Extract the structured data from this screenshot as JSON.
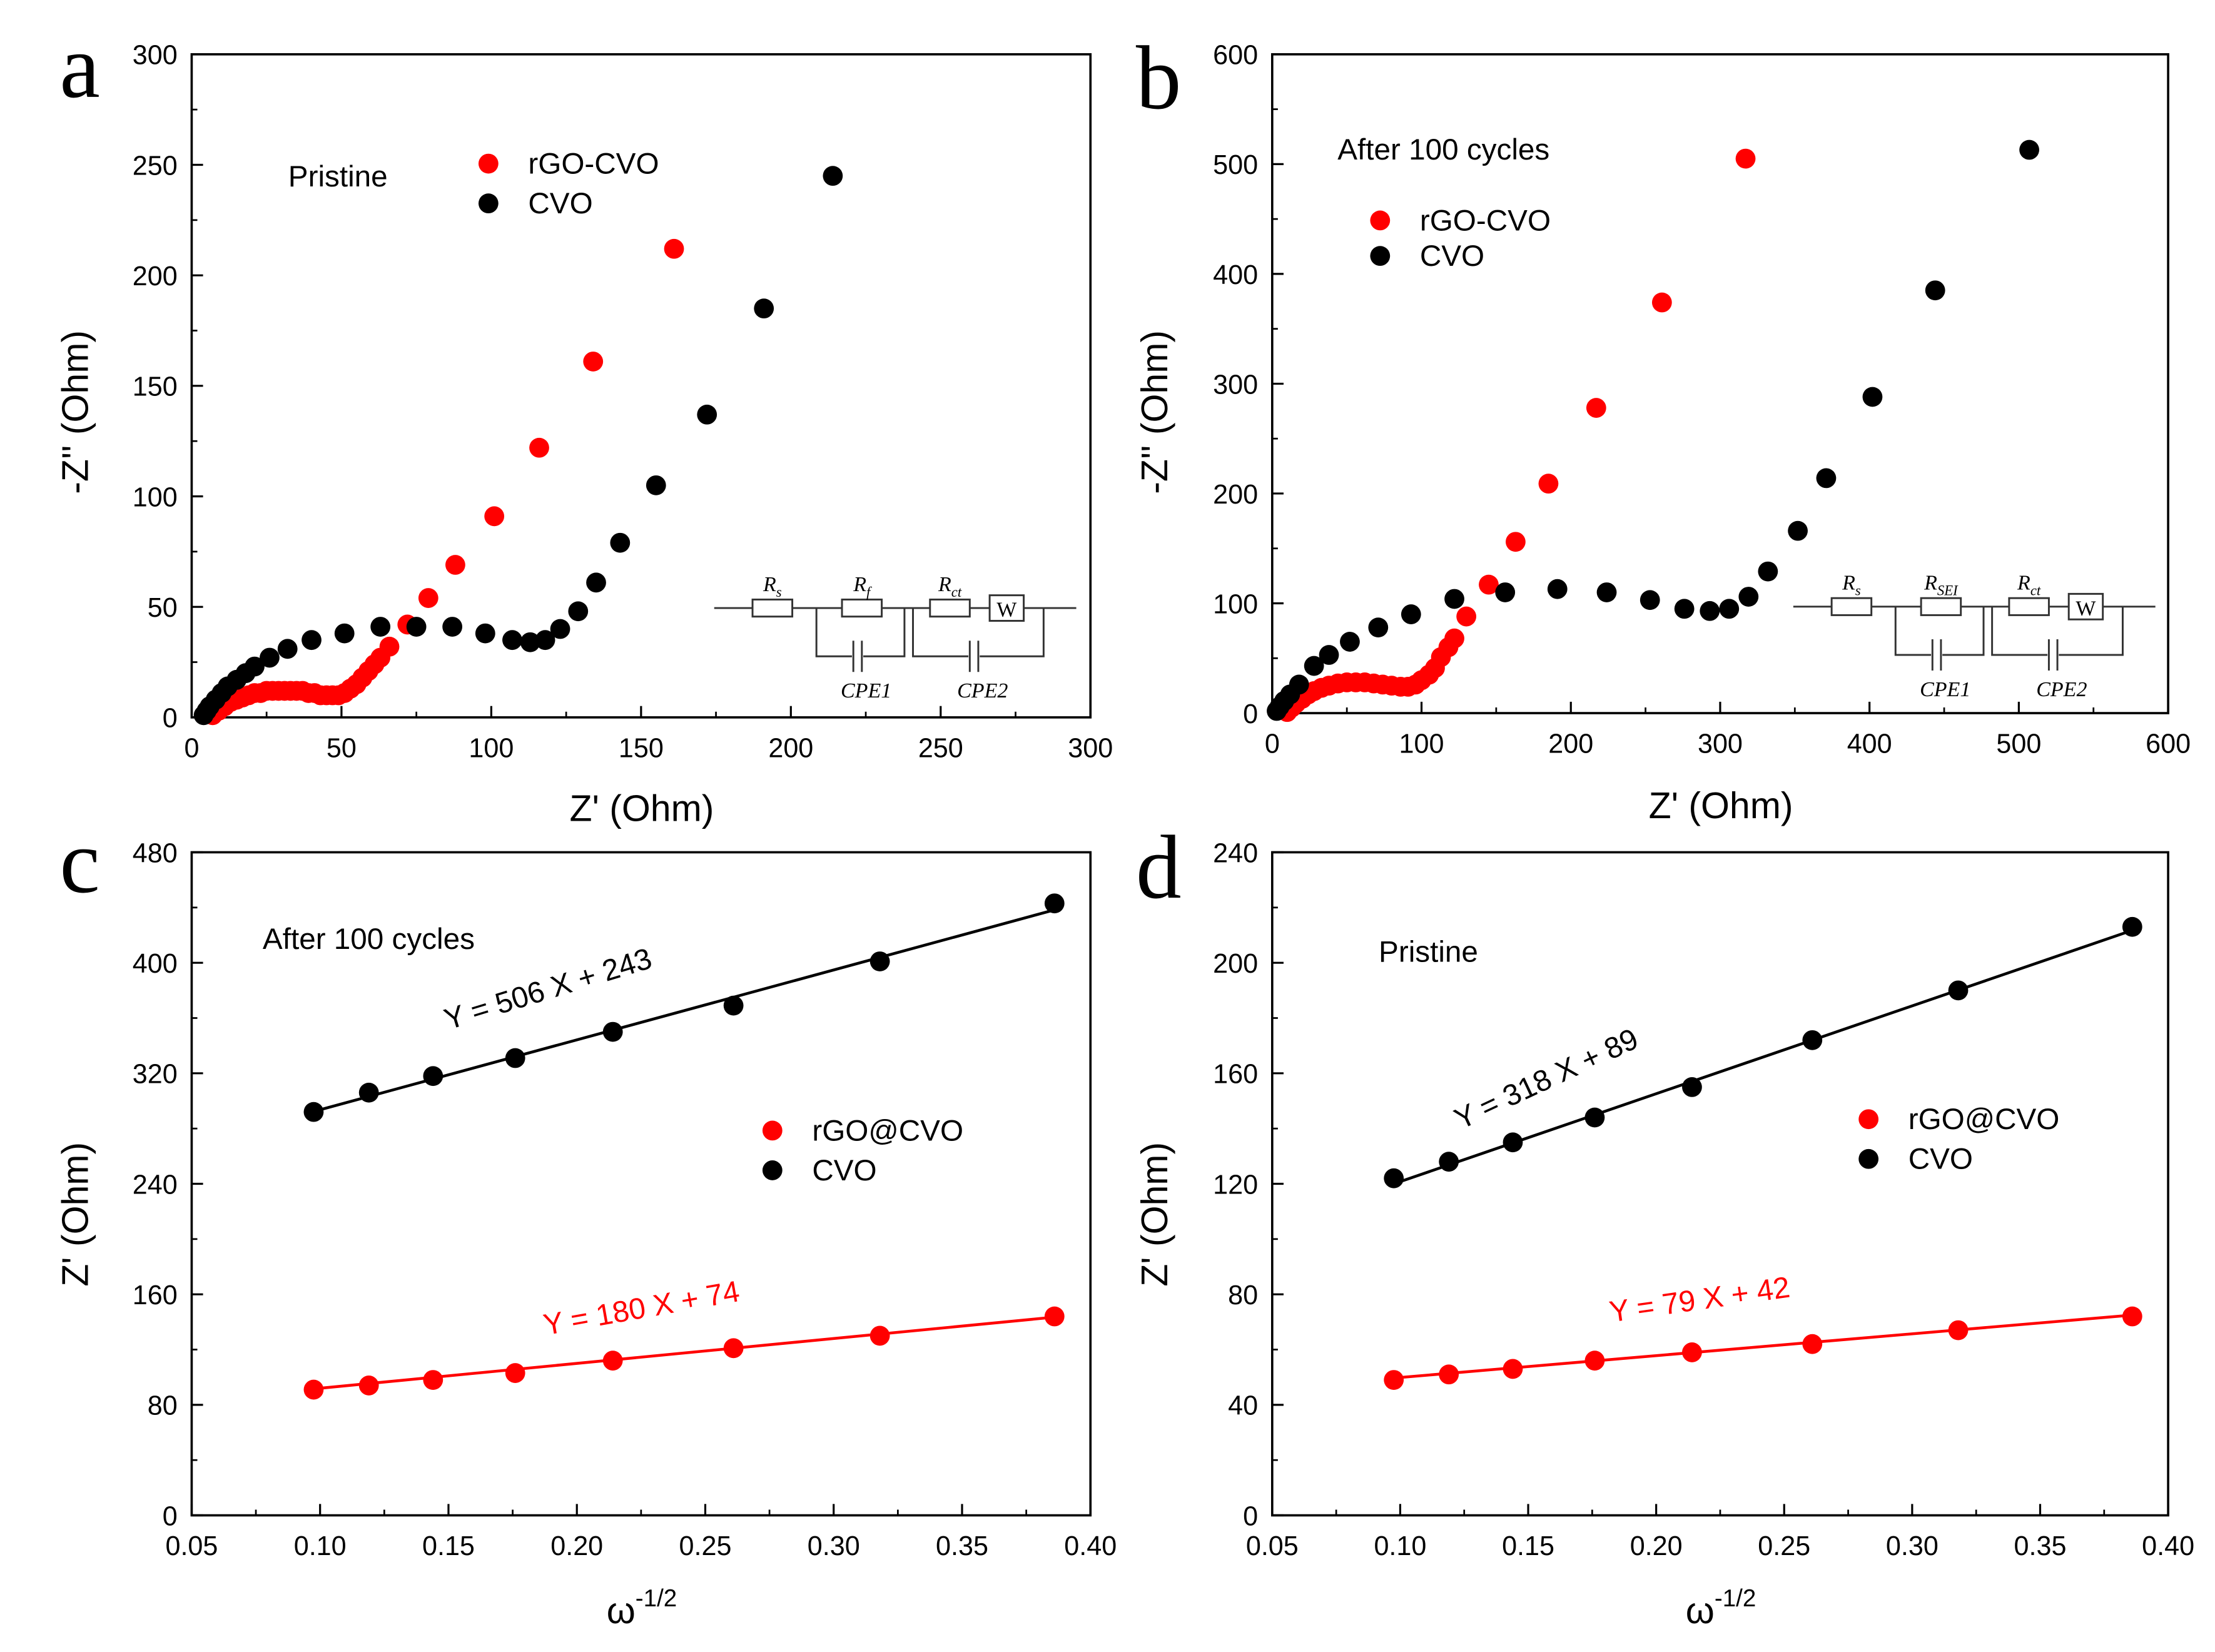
{
  "colors": {
    "red": "#ff0000",
    "black": "#000000"
  },
  "chart_data": [
    {
      "panel": "a",
      "type": "scatter",
      "annotation": "Pristine",
      "xlabel": "Z' (Ohm)",
      "ylabel": "-Z'' (Ohm)",
      "xlim": [
        0,
        300
      ],
      "ylim": [
        0,
        300
      ],
      "xstep": 50,
      "ystep": 50,
      "xticks": [
        "0",
        "50",
        "100",
        "150",
        "200",
        "250",
        "300"
      ],
      "yticks": [
        "0",
        "50",
        "100",
        "150",
        "200",
        "250",
        "300"
      ],
      "legend_position": "top-center",
      "series": [
        {
          "name": "rGO-CVO",
          "color": "#ff0000",
          "points": [
            [
              7,
              1
            ],
            [
              9,
              3
            ],
            [
              11,
              5
            ],
            [
              13,
              7
            ],
            [
              15,
              8
            ],
            [
              17,
              9
            ],
            [
              19,
              10
            ],
            [
              21,
              11
            ],
            [
              23,
              11
            ],
            [
              25,
              12
            ],
            [
              27,
              12
            ],
            [
              29,
              12
            ],
            [
              31,
              12
            ],
            [
              33,
              12
            ],
            [
              35,
              12
            ],
            [
              37,
              12
            ],
            [
              39,
              11
            ],
            [
              41,
              11
            ],
            [
              43,
              10
            ],
            [
              45,
              10
            ],
            [
              47,
              10
            ],
            [
              49,
              10
            ],
            [
              51,
              11
            ],
            [
              53,
              13
            ],
            [
              55,
              15
            ],
            [
              57,
              18
            ],
            [
              59,
              21
            ],
            [
              61,
              24
            ],
            [
              63,
              27
            ],
            [
              66,
              32
            ],
            [
              72,
              42
            ],
            [
              79,
              54
            ],
            [
              88,
              69
            ],
            [
              101,
              91
            ],
            [
              116,
              122
            ],
            [
              134,
              161
            ],
            [
              161,
              212
            ]
          ]
        },
        {
          "name": "CVO",
          "color": "#000000",
          "points": [
            [
              4,
              1
            ],
            [
              5,
              3
            ],
            [
              6,
              5
            ],
            [
              8,
              8
            ],
            [
              10,
              11
            ],
            [
              12,
              14
            ],
            [
              15,
              17
            ],
            [
              18,
              20
            ],
            [
              21,
              23
            ],
            [
              26,
              27
            ],
            [
              32,
              31
            ],
            [
              40,
              35
            ],
            [
              51,
              38
            ],
            [
              63,
              41
            ],
            [
              75,
              41
            ],
            [
              87,
              41
            ],
            [
              98,
              38
            ],
            [
              107,
              35
            ],
            [
              113,
              34
            ],
            [
              118,
              35
            ],
            [
              123,
              40
            ],
            [
              129,
              48
            ],
            [
              135,
              61
            ],
            [
              143,
              79
            ],
            [
              155,
              105
            ],
            [
              172,
              137
            ],
            [
              191,
              185
            ],
            [
              214,
              245
            ]
          ]
        }
      ],
      "circuit": {
        "labels": [
          {
            "main": "R",
            "sub": "s"
          },
          {
            "main": "R",
            "sub": "f"
          },
          {
            "main": "R",
            "sub": "ct"
          }
        ],
        "warburg": "W",
        "cpe": [
          "CPE1",
          "CPE2"
        ]
      }
    },
    {
      "panel": "b",
      "type": "scatter",
      "annotation": "After 100 cycles",
      "xlabel": "Z' (Ohm)",
      "ylabel": "-Z'' (Ohm)",
      "xlim": [
        0,
        600
      ],
      "ylim": [
        0,
        600
      ],
      "xstep": 100,
      "ystep": 100,
      "xticks": [
        "0",
        "100",
        "200",
        "300",
        "400",
        "500",
        "600"
      ],
      "yticks": [
        "0",
        "100",
        "200",
        "300",
        "400",
        "500",
        "600"
      ],
      "legend_position": "top-left",
      "series": [
        {
          "name": "rGO-CVO",
          "color": "#ff0000",
          "points": [
            [
              10,
              1
            ],
            [
              13,
              5
            ],
            [
              16,
              9
            ],
            [
              20,
              13
            ],
            [
              24,
              17
            ],
            [
              28,
              20
            ],
            [
              33,
              23
            ],
            [
              38,
              25
            ],
            [
              44,
              27
            ],
            [
              50,
              28
            ],
            [
              56,
              28
            ],
            [
              62,
              28
            ],
            [
              68,
              27
            ],
            [
              74,
              26
            ],
            [
              80,
              25
            ],
            [
              86,
              24
            ],
            [
              91,
              24
            ],
            [
              96,
              26
            ],
            [
              100,
              30
            ],
            [
              105,
              35
            ],
            [
              109,
              41
            ],
            [
              113,
              51
            ],
            [
              118,
              60
            ],
            [
              122,
              68
            ],
            [
              130,
              88
            ],
            [
              145,
              117
            ],
            [
              163,
              156
            ],
            [
              185,
              209
            ],
            [
              217,
              278
            ],
            [
              261,
              374
            ],
            [
              317,
              505
            ]
          ]
        },
        {
          "name": "CVO",
          "color": "#000000",
          "points": [
            [
              3,
              2
            ],
            [
              5,
              6
            ],
            [
              8,
              11
            ],
            [
              12,
              17
            ],
            [
              18,
              26
            ],
            [
              28,
              43
            ],
            [
              38,
              53
            ],
            [
              52,
              65
            ],
            [
              71,
              78
            ],
            [
              93,
              90
            ],
            [
              122,
              104
            ],
            [
              156,
              110
            ],
            [
              191,
              113
            ],
            [
              224,
              110
            ],
            [
              253,
              103
            ],
            [
              276,
              95
            ],
            [
              293,
              93
            ],
            [
              306,
              95
            ],
            [
              319,
              106
            ],
            [
              332,
              129
            ],
            [
              352,
              166
            ],
            [
              371,
              214
            ],
            [
              402,
              288
            ],
            [
              444,
              385
            ],
            [
              507,
              513
            ]
          ]
        }
      ],
      "circuit": {
        "labels": [
          {
            "main": "R",
            "sub": "s"
          },
          {
            "main": "R",
            "sub": "SEI"
          },
          {
            "main": "R",
            "sub": "ct"
          }
        ],
        "warburg": "W",
        "cpe": [
          "CPE1",
          "CPE2"
        ]
      }
    },
    {
      "panel": "c",
      "type": "scatter",
      "annotation": "After 100 cycles",
      "xlabel": "ω",
      "xlabel_sup": "-1/2",
      "ylabel": "Z' (Ohm)",
      "xlim": [
        0.05,
        0.4
      ],
      "ylim": [
        0,
        480
      ],
      "xstep": 0.05,
      "ystep": 80,
      "xticks": [
        "0.05",
        "0.10",
        "0.15",
        "0.20",
        "0.25",
        "0.30",
        "0.35",
        "0.40"
      ],
      "yticks": [
        "0",
        "80",
        "160",
        "240",
        "320",
        "400",
        "480"
      ],
      "legend_position": "center-right",
      "series": [
        {
          "name": "rGO@CVO",
          "color": "#ff0000",
          "x": [
            0.0975,
            0.119,
            0.144,
            0.176,
            0.214,
            0.261,
            0.318,
            0.386
          ],
          "y": [
            91,
            94,
            98,
            103,
            112,
            121,
            130,
            144
          ],
          "fit": {
            "slope": 180,
            "intercept": 74,
            "label": "Y = 180 X + 74"
          }
        },
        {
          "name": "CVO",
          "color": "#000000",
          "x": [
            0.0975,
            0.119,
            0.144,
            0.176,
            0.214,
            0.261,
            0.318,
            0.386
          ],
          "y": [
            292,
            306,
            318,
            331,
            350,
            369,
            401,
            443
          ],
          "fit": {
            "slope": 506,
            "intercept": 243,
            "label": "Y = 506 X + 243"
          }
        }
      ]
    },
    {
      "panel": "d",
      "type": "scatter",
      "annotation": "Pristine",
      "xlabel": "ω",
      "xlabel_sup": "-1/2",
      "ylabel": "Z' (Ohm)",
      "xlim": [
        0.05,
        0.4
      ],
      "ylim": [
        0,
        240
      ],
      "xstep": 0.05,
      "ystep": 40,
      "xticks": [
        "0.05",
        "0.10",
        "0.15",
        "0.20",
        "0.25",
        "0.30",
        "0.35",
        "0.40"
      ],
      "yticks": [
        "0",
        "40",
        "80",
        "120",
        "160",
        "200",
        "240"
      ],
      "legend_position": "center-right",
      "series": [
        {
          "name": "rGO@CVO",
          "color": "#ff0000",
          "x": [
            0.0975,
            0.119,
            0.144,
            0.176,
            0.214,
            0.261,
            0.318,
            0.386
          ],
          "y": [
            49,
            51,
            53,
            56,
            59,
            62,
            67,
            72
          ],
          "fit": {
            "slope": 79,
            "intercept": 42,
            "label": "Y = 79 X + 42"
          }
        },
        {
          "name": "CVO",
          "color": "#000000",
          "x": [
            0.0975,
            0.119,
            0.144,
            0.176,
            0.214,
            0.261,
            0.318,
            0.386
          ],
          "y": [
            122,
            128,
            135,
            144,
            155,
            172,
            190,
            213
          ],
          "fit": {
            "slope": 318,
            "intercept": 89,
            "label": "Y = 318 X + 89"
          }
        }
      ]
    }
  ]
}
